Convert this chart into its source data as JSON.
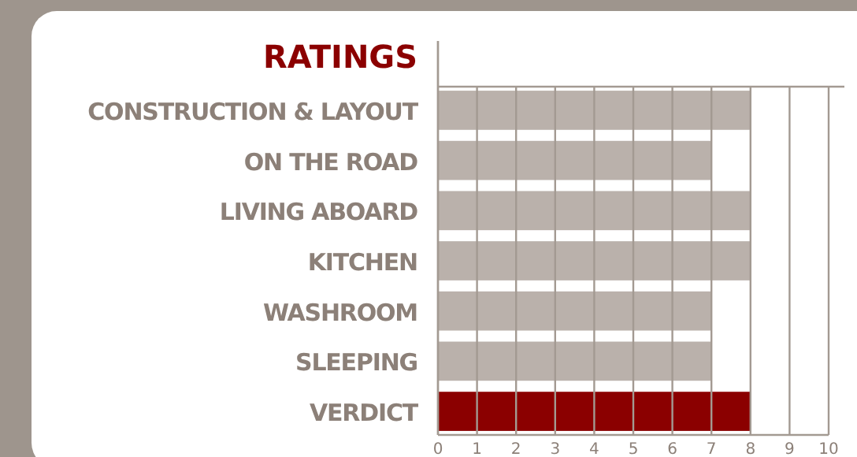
{
  "chart_data": {
    "type": "bar",
    "orientation": "horizontal",
    "title": "RATINGS",
    "categories": [
      "CONSTRUCTION & LAYOUT",
      "ON THE ROAD",
      "LIVING ABOARD",
      "KITCHEN",
      "WASHROOM",
      "SLEEPING",
      "VERDICT"
    ],
    "values": [
      8,
      7,
      8,
      8,
      7,
      7,
      8
    ],
    "colors": [
      "#bab1ab",
      "#bab1ab",
      "#bab1ab",
      "#bab1ab",
      "#bab1ab",
      "#bab1ab",
      "#8b0000"
    ],
    "xlim": [
      0,
      10
    ],
    "xticks": [
      0,
      1,
      2,
      3,
      4,
      5,
      6,
      7,
      8,
      9,
      10
    ],
    "grid": "x"
  }
}
